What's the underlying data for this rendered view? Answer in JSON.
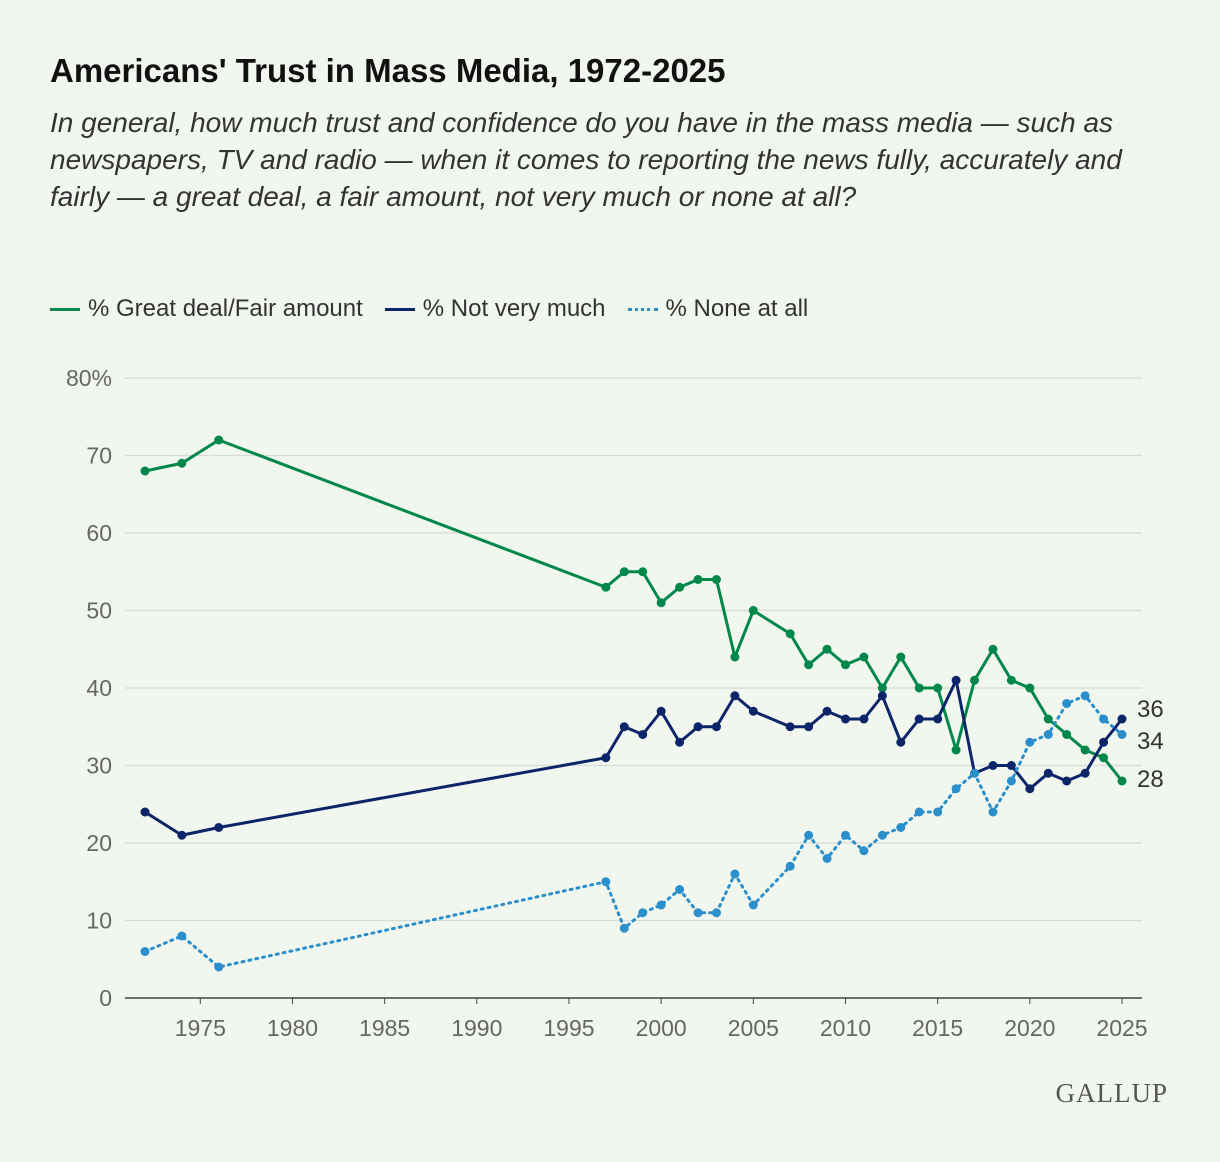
{
  "chart_data": {
    "type": "line",
    "title": "Americans' Trust in Mass Media, 1972-2025",
    "subtitle": "In general, how much trust and confidence do you have in the mass media — such as newspapers, TV and radio — when it comes to reporting the news fully, accurately and fairly — a great deal, a fair amount, not very much or none at all?",
    "x": [
      1972,
      1974,
      1976,
      1997,
      1998,
      1999,
      2000,
      2001,
      2002,
      2003,
      2004,
      2005,
      2007,
      2008,
      2009,
      2010,
      2011,
      2012,
      2013,
      2014,
      2015,
      2016,
      2017,
      2018,
      2019,
      2020,
      2021,
      2022,
      2023,
      2024,
      2025
    ],
    "series": [
      {
        "name": "% Great deal/Fair amount",
        "color": "#00884a",
        "style": "solid",
        "values": [
          68,
          69,
          72,
          53,
          55,
          55,
          51,
          53,
          54,
          54,
          44,
          50,
          47,
          43,
          45,
          43,
          44,
          40,
          44,
          40,
          40,
          32,
          41,
          45,
          41,
          40,
          36,
          34,
          32,
          31,
          28
        ]
      },
      {
        "name": "% Not very much",
        "color": "#0c2468",
        "style": "solid",
        "values": [
          24,
          21,
          22,
          31,
          35,
          34,
          37,
          33,
          35,
          35,
          39,
          37,
          35,
          35,
          37,
          36,
          36,
          39,
          33,
          36,
          36,
          41,
          29,
          30,
          30,
          27,
          29,
          28,
          29,
          33,
          36
        ]
      },
      {
        "name": "% None at all",
        "color": "#2a8fcb",
        "style": "dotted",
        "values": [
          6,
          8,
          4,
          15,
          9,
          11,
          12,
          14,
          11,
          11,
          16,
          12,
          17,
          21,
          18,
          21,
          19,
          21,
          22,
          24,
          24,
          27,
          29,
          24,
          28,
          33,
          34,
          38,
          39,
          36,
          34
        ]
      }
    ],
    "end_labels": [
      "36",
      "34",
      "28"
    ],
    "xticks": [
      "1975",
      "1980",
      "1985",
      "1990",
      "1995",
      "2000",
      "2005",
      "2010",
      "2015",
      "2020",
      "2025"
    ],
    "yticks": [
      "0",
      "10",
      "20",
      "30",
      "40",
      "50",
      "60",
      "70",
      "80%"
    ],
    "ylim": [
      0,
      80
    ],
    "xlim": [
      1972,
      2025
    ],
    "grid": "horizontal",
    "legend_position": "top-left",
    "background": "#f1f6ef"
  },
  "logo": "GALLUP"
}
